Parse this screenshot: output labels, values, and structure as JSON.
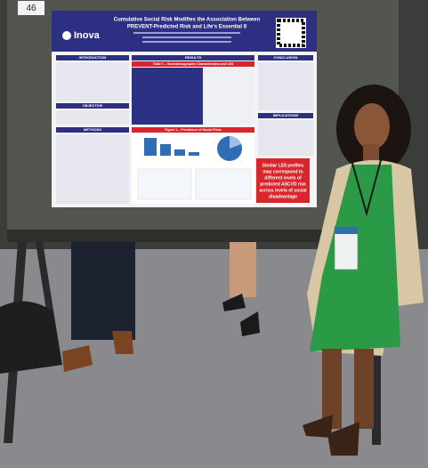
{
  "booth_number": "46",
  "poster": {
    "logo": "Inova",
    "title_line_1": "Cumulative Social Risk Modifies the Association Between",
    "title_line_2": "PREVENT-Predicted Risk and Life's Essential 8",
    "sections": {
      "introduction": "INTRODUCTION",
      "objective": "OBJECTIVE",
      "methods": "METHODS",
      "results": "RESULTS",
      "conclusion": "CONCLUSION",
      "implications": "IMPLICATIONS"
    },
    "table_caption": "Table 1 – Sociodemographic Characteristics and LE8",
    "figure_caption": "Figure 1 – Prevalence of Social Risks",
    "callout": [
      "Similar LE8 profiles",
      "may correspond to",
      "different levels of",
      "predicted ASCVD risk",
      "across levels of social",
      "disadvantage"
    ]
  }
}
